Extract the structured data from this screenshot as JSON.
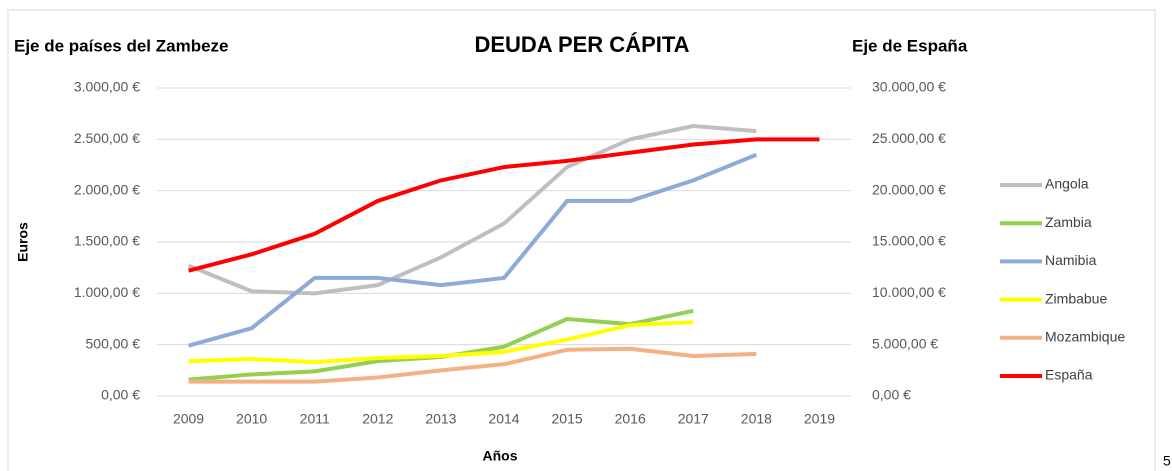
{
  "chart_data": {
    "type": "line",
    "title": "DEUDA PER CÁPITA",
    "y_axis_title": "Eje de países del Zambeze",
    "y2_axis_title": "Eje de España",
    "y_label": "Euros",
    "x_label": "Años",
    "edge_text": "5",
    "categories": [
      "2009",
      "2010",
      "2011",
      "2012",
      "2013",
      "2014",
      "2015",
      "2016",
      "2017",
      "2018",
      "2019"
    ],
    "ylim": [
      0,
      3000
    ],
    "yticks": [
      {
        "value": 0,
        "label": "0,00 €"
      },
      {
        "value": 500,
        "label": "500,00 €"
      },
      {
        "value": 1000,
        "label": "1.000,00 €"
      },
      {
        "value": 1500,
        "label": "1.500,00 €"
      },
      {
        "value": 2000,
        "label": "2.000,00 €"
      },
      {
        "value": 2500,
        "label": "2.500,00 €"
      },
      {
        "value": 3000,
        "label": "3.000,00 €"
      }
    ],
    "y2lim": [
      0,
      30000
    ],
    "y2ticks": [
      {
        "value": 0,
        "label": "0,00 €"
      },
      {
        "value": 5000,
        "label": "5.000,00 €"
      },
      {
        "value": 10000,
        "label": "10.000,00 €"
      },
      {
        "value": 15000,
        "label": "15.000,00 €"
      },
      {
        "value": 20000,
        "label": "20.000,00 €"
      },
      {
        "value": 25000,
        "label": "25.000,00 €"
      },
      {
        "value": 30000,
        "label": "30.000,00 €"
      }
    ],
    "grid": true,
    "legend": "right",
    "series": [
      {
        "name": "Angola",
        "color": "#bfbfbf",
        "values": [
          1270,
          1020,
          1000,
          1080,
          1350,
          1680,
          2230,
          2500,
          2630,
          2580,
          null
        ]
      },
      {
        "name": "Zambia",
        "color": "#92d050",
        "values": [
          160,
          210,
          240,
          340,
          380,
          480,
          750,
          700,
          830,
          null,
          null
        ]
      },
      {
        "name": "Namibia",
        "color": "#8eaadb",
        "values": [
          490,
          660,
          1150,
          1150,
          1080,
          1150,
          1900,
          1900,
          2100,
          2350,
          null
        ]
      },
      {
        "name": "Zimbabue",
        "color": "#ffff00",
        "values": [
          340,
          360,
          330,
          370,
          390,
          430,
          550,
          690,
          720,
          null,
          null
        ]
      },
      {
        "name": "Mozambique",
        "color": "#f4b183",
        "values": [
          140,
          140,
          140,
          180,
          250,
          310,
          450,
          460,
          390,
          410,
          null
        ]
      },
      {
        "name": "España",
        "color": "#ff0000",
        "axis": "y2",
        "values": [
          12200,
          13800,
          15800,
          19000,
          21000,
          22300,
          22900,
          23700,
          24500,
          25000,
          25000
        ]
      }
    ]
  }
}
